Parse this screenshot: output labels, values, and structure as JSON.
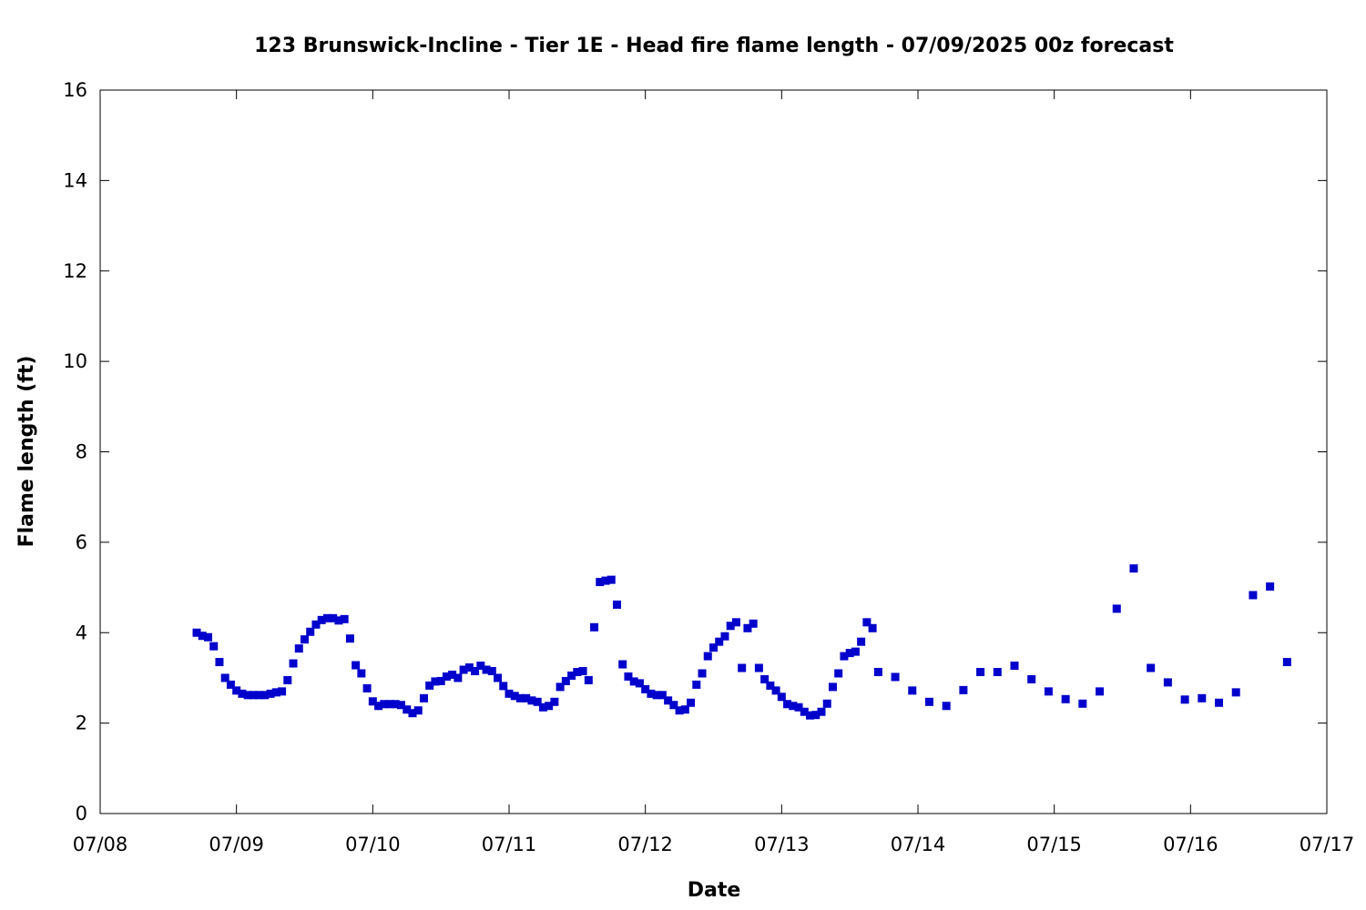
{
  "chart_data": {
    "type": "scatter",
    "title": "123 Brunswick-Incline - Tier 1E - Head fire flame length - 07/09/2025 00z forecast",
    "xlabel": "Date",
    "ylabel": "Flame length (ft)",
    "xlim": [
      "2025-07-08 00:00",
      "2025-07-17 00:00"
    ],
    "ylim": [
      0,
      16
    ],
    "x_ticks": [
      {
        "t": "2025-07-08 00:00",
        "label": "07/08"
      },
      {
        "t": "2025-07-09 00:00",
        "label": "07/09"
      },
      {
        "t": "2025-07-10 00:00",
        "label": "07/10"
      },
      {
        "t": "2025-07-11 00:00",
        "label": "07/11"
      },
      {
        "t": "2025-07-12 00:00",
        "label": "07/12"
      },
      {
        "t": "2025-07-13 00:00",
        "label": "07/13"
      },
      {
        "t": "2025-07-14 00:00",
        "label": "07/14"
      },
      {
        "t": "2025-07-15 00:00",
        "label": "07/15"
      },
      {
        "t": "2025-07-16 00:00",
        "label": "07/16"
      },
      {
        "t": "2025-07-17 00:00",
        "label": "07/17"
      }
    ],
    "y_ticks": [
      0,
      2,
      4,
      6,
      8,
      10,
      12,
      14,
      16
    ],
    "grid": false,
    "legend": "none",
    "marker_color": "#0000cc",
    "marker": "square",
    "series": [
      {
        "points": [
          [
            "2025-07-08 17:00",
            4.0
          ],
          [
            "2025-07-08 18:00",
            3.93
          ],
          [
            "2025-07-08 19:00",
            3.9
          ],
          [
            "2025-07-08 20:00",
            3.7
          ],
          [
            "2025-07-08 21:00",
            3.35
          ],
          [
            "2025-07-08 22:00",
            3.0
          ],
          [
            "2025-07-08 23:00",
            2.85
          ],
          [
            "2025-07-09 00:00",
            2.72
          ],
          [
            "2025-07-09 01:00",
            2.65
          ],
          [
            "2025-07-09 02:00",
            2.62
          ],
          [
            "2025-07-09 03:00",
            2.62
          ],
          [
            "2025-07-09 04:00",
            2.62
          ],
          [
            "2025-07-09 05:00",
            2.62
          ],
          [
            "2025-07-09 06:00",
            2.65
          ],
          [
            "2025-07-09 07:00",
            2.68
          ],
          [
            "2025-07-09 08:00",
            2.7
          ],
          [
            "2025-07-09 09:00",
            2.95
          ],
          [
            "2025-07-09 10:00",
            3.32
          ],
          [
            "2025-07-09 11:00",
            3.65
          ],
          [
            "2025-07-09 12:00",
            3.85
          ],
          [
            "2025-07-09 13:00",
            4.02
          ],
          [
            "2025-07-09 14:00",
            4.18
          ],
          [
            "2025-07-09 15:00",
            4.28
          ],
          [
            "2025-07-09 16:00",
            4.32
          ],
          [
            "2025-07-09 17:00",
            4.32
          ],
          [
            "2025-07-09 18:00",
            4.27
          ],
          [
            "2025-07-09 19:00",
            4.3
          ],
          [
            "2025-07-09 20:00",
            3.87
          ],
          [
            "2025-07-09 21:00",
            3.28
          ],
          [
            "2025-07-09 22:00",
            3.1
          ],
          [
            "2025-07-09 23:00",
            2.77
          ],
          [
            "2025-07-10 00:00",
            2.48
          ],
          [
            "2025-07-10 01:00",
            2.38
          ],
          [
            "2025-07-10 02:00",
            2.42
          ],
          [
            "2025-07-10 03:00",
            2.42
          ],
          [
            "2025-07-10 04:00",
            2.42
          ],
          [
            "2025-07-10 05:00",
            2.4
          ],
          [
            "2025-07-10 06:00",
            2.3
          ],
          [
            "2025-07-10 07:00",
            2.22
          ],
          [
            "2025-07-10 08:00",
            2.28
          ],
          [
            "2025-07-10 09:00",
            2.55
          ],
          [
            "2025-07-10 10:00",
            2.83
          ],
          [
            "2025-07-10 11:00",
            2.92
          ],
          [
            "2025-07-10 12:00",
            2.93
          ],
          [
            "2025-07-10 13:00",
            3.03
          ],
          [
            "2025-07-10 14:00",
            3.07
          ],
          [
            "2025-07-10 15:00",
            3.0
          ],
          [
            "2025-07-10 16:00",
            3.18
          ],
          [
            "2025-07-10 17:00",
            3.23
          ],
          [
            "2025-07-10 18:00",
            3.15
          ],
          [
            "2025-07-10 19:00",
            3.27
          ],
          [
            "2025-07-10 20:00",
            3.18
          ],
          [
            "2025-07-10 21:00",
            3.15
          ],
          [
            "2025-07-10 22:00",
            3.0
          ],
          [
            "2025-07-10 23:00",
            2.82
          ],
          [
            "2025-07-11 00:00",
            2.65
          ],
          [
            "2025-07-11 01:00",
            2.6
          ],
          [
            "2025-07-11 02:00",
            2.55
          ],
          [
            "2025-07-11 03:00",
            2.55
          ],
          [
            "2025-07-11 04:00",
            2.5
          ],
          [
            "2025-07-11 05:00",
            2.47
          ],
          [
            "2025-07-11 06:00",
            2.35
          ],
          [
            "2025-07-11 07:00",
            2.38
          ],
          [
            "2025-07-11 08:00",
            2.47
          ],
          [
            "2025-07-11 09:00",
            2.8
          ],
          [
            "2025-07-11 10:00",
            2.93
          ],
          [
            "2025-07-11 11:00",
            3.05
          ],
          [
            "2025-07-11 12:00",
            3.13
          ],
          [
            "2025-07-11 13:00",
            3.15
          ],
          [
            "2025-07-11 14:00",
            2.95
          ],
          [
            "2025-07-11 15:00",
            4.12
          ],
          [
            "2025-07-11 16:00",
            5.12
          ],
          [
            "2025-07-11 17:00",
            5.15
          ],
          [
            "2025-07-11 18:00",
            5.17
          ],
          [
            "2025-07-11 19:00",
            4.62
          ],
          [
            "2025-07-11 20:00",
            3.3
          ],
          [
            "2025-07-11 21:00",
            3.03
          ],
          [
            "2025-07-11 22:00",
            2.92
          ],
          [
            "2025-07-11 23:00",
            2.88
          ],
          [
            "2025-07-12 00:00",
            2.75
          ],
          [
            "2025-07-12 01:00",
            2.65
          ],
          [
            "2025-07-12 02:00",
            2.62
          ],
          [
            "2025-07-12 03:00",
            2.62
          ],
          [
            "2025-07-12 04:00",
            2.5
          ],
          [
            "2025-07-12 05:00",
            2.4
          ],
          [
            "2025-07-12 06:00",
            2.28
          ],
          [
            "2025-07-12 07:00",
            2.3
          ],
          [
            "2025-07-12 08:00",
            2.45
          ],
          [
            "2025-07-12 09:00",
            2.85
          ],
          [
            "2025-07-12 10:00",
            3.1
          ],
          [
            "2025-07-12 11:00",
            3.48
          ],
          [
            "2025-07-12 12:00",
            3.67
          ],
          [
            "2025-07-12 13:00",
            3.8
          ],
          [
            "2025-07-12 14:00",
            3.92
          ],
          [
            "2025-07-12 15:00",
            4.15
          ],
          [
            "2025-07-12 16:00",
            4.23
          ],
          [
            "2025-07-12 17:00",
            3.22
          ],
          [
            "2025-07-12 18:00",
            4.1
          ],
          [
            "2025-07-12 19:00",
            4.2
          ],
          [
            "2025-07-12 20:00",
            3.22
          ],
          [
            "2025-07-12 21:00",
            2.97
          ],
          [
            "2025-07-12 22:00",
            2.83
          ],
          [
            "2025-07-12 23:00",
            2.72
          ],
          [
            "2025-07-13 00:00",
            2.58
          ],
          [
            "2025-07-13 01:00",
            2.42
          ],
          [
            "2025-07-13 02:00",
            2.38
          ],
          [
            "2025-07-13 03:00",
            2.35
          ],
          [
            "2025-07-13 04:00",
            2.25
          ],
          [
            "2025-07-13 05:00",
            2.17
          ],
          [
            "2025-07-13 06:00",
            2.18
          ],
          [
            "2025-07-13 07:00",
            2.25
          ],
          [
            "2025-07-13 08:00",
            2.43
          ],
          [
            "2025-07-13 09:00",
            2.8
          ],
          [
            "2025-07-13 10:00",
            3.1
          ],
          [
            "2025-07-13 11:00",
            3.48
          ],
          [
            "2025-07-13 12:00",
            3.55
          ],
          [
            "2025-07-13 13:00",
            3.58
          ],
          [
            "2025-07-13 14:00",
            3.8
          ],
          [
            "2025-07-13 15:00",
            4.23
          ],
          [
            "2025-07-13 16:00",
            4.1
          ],
          [
            "2025-07-13 17:00",
            3.13
          ],
          [
            "2025-07-13 20:00",
            3.02
          ],
          [
            "2025-07-13 23:00",
            2.72
          ],
          [
            "2025-07-14 02:00",
            2.47
          ],
          [
            "2025-07-14 05:00",
            2.38
          ],
          [
            "2025-07-14 08:00",
            2.73
          ],
          [
            "2025-07-14 11:00",
            3.13
          ],
          [
            "2025-07-14 14:00",
            3.13
          ],
          [
            "2025-07-14 17:00",
            3.27
          ],
          [
            "2025-07-14 20:00",
            2.97
          ],
          [
            "2025-07-14 23:00",
            2.7
          ],
          [
            "2025-07-15 02:00",
            2.53
          ],
          [
            "2025-07-15 05:00",
            2.43
          ],
          [
            "2025-07-15 08:00",
            2.7
          ],
          [
            "2025-07-15 11:00",
            4.53
          ],
          [
            "2025-07-15 14:00",
            5.42
          ],
          [
            "2025-07-15 17:00",
            3.22
          ],
          [
            "2025-07-15 20:00",
            2.9
          ],
          [
            "2025-07-15 23:00",
            2.52
          ],
          [
            "2025-07-16 02:00",
            2.55
          ],
          [
            "2025-07-16 05:00",
            2.45
          ],
          [
            "2025-07-16 08:00",
            2.68
          ],
          [
            "2025-07-16 11:00",
            4.83
          ],
          [
            "2025-07-16 14:00",
            5.02
          ],
          [
            "2025-07-16 17:00",
            3.35
          ]
        ]
      }
    ]
  }
}
